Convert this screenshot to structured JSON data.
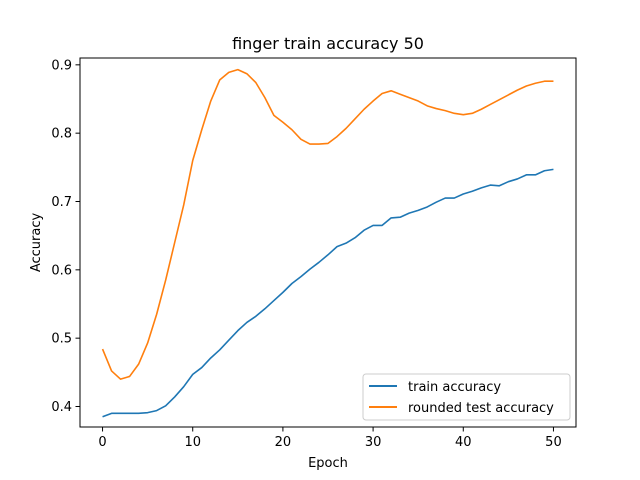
{
  "chart_data": {
    "type": "line",
    "title": "finger train accuracy 50",
    "xlabel": "Epoch",
    "ylabel": "Accuracy",
    "xlim": [
      -2.5,
      52.5
    ],
    "ylim": [
      0.37,
      0.91
    ],
    "xticks": [
      0,
      10,
      20,
      30,
      40,
      50
    ],
    "yticks": [
      0.4,
      0.5,
      0.6,
      0.7,
      0.8,
      0.9
    ],
    "xtick_labels": [
      "0",
      "10",
      "20",
      "30",
      "40",
      "50"
    ],
    "ytick_labels": [
      "0.4",
      "0.5",
      "0.6",
      "0.7",
      "0.8",
      "0.9"
    ],
    "grid": false,
    "legend_position": "lower-right",
    "x": [
      0,
      1,
      2,
      3,
      4,
      5,
      6,
      7,
      8,
      9,
      10,
      11,
      12,
      13,
      14,
      15,
      16,
      17,
      18,
      19,
      20,
      21,
      22,
      23,
      24,
      25,
      26,
      27,
      28,
      29,
      30,
      31,
      32,
      33,
      34,
      35,
      36,
      37,
      38,
      39,
      40,
      41,
      42,
      43,
      44,
      45,
      46,
      47,
      48,
      49,
      50
    ],
    "series": [
      {
        "name": "train accuracy",
        "color": "#1f77b4",
        "values": [
          0.385,
          0.39,
          0.39,
          0.39,
          0.39,
          0.391,
          0.394,
          0.401,
          0.414,
          0.429,
          0.447,
          0.457,
          0.471,
          0.483,
          0.497,
          0.511,
          0.523,
          0.532,
          0.543,
          0.555,
          0.567,
          0.58,
          0.59,
          0.601,
          0.611,
          0.622,
          0.634,
          0.639,
          0.647,
          0.658,
          0.665,
          0.665,
          0.676,
          0.677,
          0.683,
          0.687,
          0.692,
          0.699,
          0.705,
          0.705,
          0.711,
          0.715,
          0.72,
          0.724,
          0.723,
          0.729,
          0.733,
          0.739,
          0.739,
          0.745,
          0.747
        ]
      },
      {
        "name": "rounded test accuracy",
        "color": "#ff7f0e",
        "values": [
          0.484,
          0.452,
          0.44,
          0.444,
          0.462,
          0.493,
          0.535,
          0.585,
          0.64,
          0.695,
          0.76,
          0.805,
          0.847,
          0.878,
          0.889,
          0.893,
          0.887,
          0.874,
          0.852,
          0.826,
          0.816,
          0.805,
          0.791,
          0.784,
          0.784,
          0.785,
          0.795,
          0.807,
          0.821,
          0.835,
          0.847,
          0.858,
          0.862,
          0.857,
          0.852,
          0.847,
          0.84,
          0.836,
          0.833,
          0.829,
          0.827,
          0.829,
          0.835,
          0.842,
          0.849,
          0.856,
          0.863,
          0.869,
          0.873,
          0.876,
          0.876
        ]
      }
    ]
  }
}
